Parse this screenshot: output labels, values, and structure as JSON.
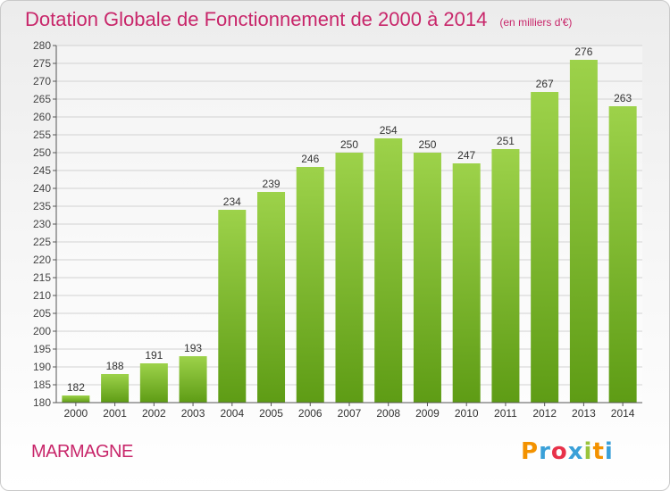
{
  "title": "Dotation Globale de Fonctionnement de 2000 à 2014",
  "subtitle": "(en milliers d'€)",
  "town": "MARMAGNE",
  "logo": "Proxiti",
  "colors": {
    "bar_top": "#9dd24a",
    "bar_bottom": "#5e9c15",
    "title": "#c8266a"
  },
  "chart_data": {
    "type": "bar",
    "categories": [
      "2000",
      "2001",
      "2002",
      "2003",
      "2004",
      "2005",
      "2006",
      "2007",
      "2008",
      "2009",
      "2010",
      "2011",
      "2012",
      "2013",
      "2014"
    ],
    "values": [
      182,
      188,
      191,
      193,
      234,
      239,
      246,
      250,
      254,
      250,
      247,
      251,
      267,
      276,
      263
    ],
    "title": "Dotation Globale de Fonctionnement de 2000 à 2014",
    "subtitle": "(en milliers d'€)",
    "xlabel": "",
    "ylabel": "",
    "ylim": [
      180,
      280
    ],
    "ytick_step": 5,
    "grid": true,
    "legend": "none"
  }
}
